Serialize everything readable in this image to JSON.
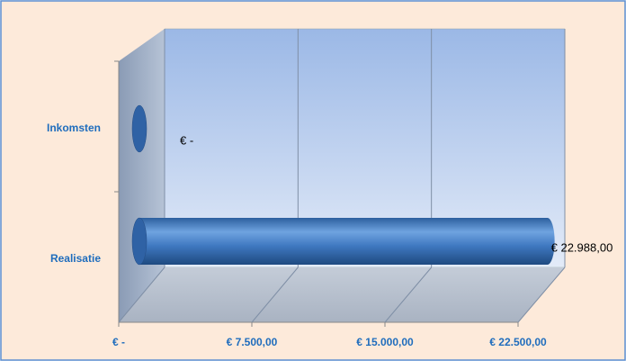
{
  "chart_data": {
    "type": "bar",
    "orientation": "horizontal",
    "categories": [
      "Inkomsten",
      "Realisatie"
    ],
    "values": [
      0,
      22988
    ],
    "value_labels": [
      "€ -",
      "€ 22.988,00"
    ],
    "color": "#4a86cc",
    "xlim": [
      0,
      22500
    ],
    "xticks": [
      {
        "value": 0,
        "label": "€ -"
      },
      {
        "value": 7500,
        "label": "€ 7.500,00"
      },
      {
        "value": 15000,
        "label": "€ 15.000,00"
      },
      {
        "value": 22500,
        "label": "€ 22.500,00"
      }
    ],
    "grid": true
  }
}
